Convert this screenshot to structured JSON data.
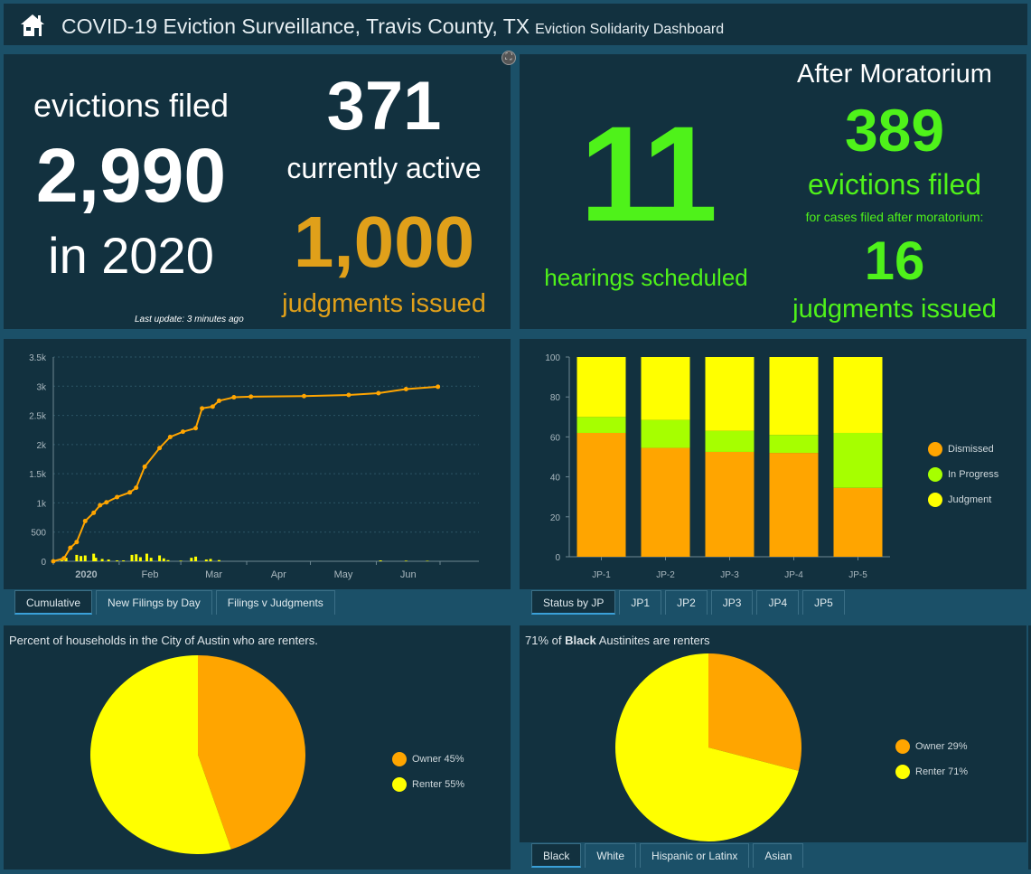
{
  "header": {
    "title": "COVID-19 Eviction Surveillance, Travis County, TX",
    "subtitle": "Eviction Solidarity Dashboard",
    "icon": "home-icon"
  },
  "colors": {
    "orange": "#ffa500",
    "green": "#a6ff00",
    "yellow": "#ffff00",
    "accent_green": "#4ff21a",
    "judgment_gold": "#e0a01a"
  },
  "summary": {
    "label_top": "evictions filed",
    "total": "2,990",
    "label_year": "in 2020",
    "active": "371",
    "active_label": "currently active",
    "judgments": "1,000",
    "judgments_label": "judgments issued",
    "last_update": "Last update: 3 minutes ago"
  },
  "after": {
    "hearings": "11",
    "hearings_label": "hearings scheduled",
    "heading": "After Moratorium",
    "filed": "389",
    "filed_label": "evictions filed",
    "note": "for cases filed after moratorium:",
    "judgments": "16",
    "judgments_label": "judgments issued"
  },
  "line_tabs": [
    "Cumulative",
    "New Filings by Day",
    "Filings v Judgments"
  ],
  "jp_tabs": [
    "Status by JP",
    "JP1",
    "JP2",
    "JP3",
    "JP4",
    "JP5"
  ],
  "race_tabs": [
    "Black",
    "White",
    "Hispanic or Latinx",
    "Asian"
  ],
  "chart_data": [
    {
      "type": "line",
      "ylim": [
        0,
        3500
      ],
      "yticks": [
        "0",
        "500",
        "1k",
        "1.5k",
        "2k",
        "2.5k",
        "3k",
        "3.5k"
      ],
      "xticks": [
        "2020",
        "Feb",
        "Mar",
        "Apr",
        "May",
        "Jun"
      ],
      "xrange": [
        "2020-01-01",
        "2020-07-01"
      ],
      "grid": true,
      "series": [
        {
          "type": "line",
          "color": "#ffa500",
          "points": [
            [
              "2020-01-01",
              0
            ],
            [
              "2020-01-06",
              50
            ],
            [
              "2020-01-09",
              230
            ],
            [
              "2020-01-12",
              330
            ],
            [
              "2020-01-16",
              690
            ],
            [
              "2020-01-20",
              830
            ],
            [
              "2020-01-23",
              960
            ],
            [
              "2020-01-26",
              1010
            ],
            [
              "2020-01-31",
              1100
            ],
            [
              "2020-02-06",
              1180
            ],
            [
              "2020-02-09",
              1260
            ],
            [
              "2020-02-13",
              1620
            ],
            [
              "2020-02-20",
              1940
            ],
            [
              "2020-02-25",
              2130
            ],
            [
              "2020-03-02",
              2220
            ],
            [
              "2020-03-08",
              2280
            ],
            [
              "2020-03-11",
              2620
            ],
            [
              "2020-03-16",
              2650
            ],
            [
              "2020-03-19",
              2750
            ],
            [
              "2020-03-26",
              2810
            ],
            [
              "2020-04-03",
              2820
            ],
            [
              "2020-04-28",
              2830
            ],
            [
              "2020-05-19",
              2850
            ],
            [
              "2020-06-02",
              2880
            ],
            [
              "2020-06-15",
              2950
            ],
            [
              "2020-06-30",
              2990
            ]
          ]
        },
        {
          "type": "bar",
          "color": "#ffff00",
          "points": [
            [
              "2020-01-05",
              20
            ],
            [
              "2020-01-07",
              60
            ],
            [
              "2020-01-12",
              110
            ],
            [
              "2020-01-14",
              90
            ],
            [
              "2020-01-16",
              100
            ],
            [
              "2020-01-20",
              130
            ],
            [
              "2020-01-21",
              60
            ],
            [
              "2020-01-24",
              40
            ],
            [
              "2020-01-27",
              30
            ],
            [
              "2020-01-31",
              15
            ],
            [
              "2020-02-03",
              15
            ],
            [
              "2020-02-07",
              110
            ],
            [
              "2020-02-09",
              120
            ],
            [
              "2020-02-11",
              70
            ],
            [
              "2020-02-14",
              130
            ],
            [
              "2020-02-16",
              60
            ],
            [
              "2020-02-20",
              100
            ],
            [
              "2020-02-22",
              50
            ],
            [
              "2020-02-24",
              20
            ],
            [
              "2020-03-01",
              10
            ],
            [
              "2020-03-06",
              60
            ],
            [
              "2020-03-08",
              80
            ],
            [
              "2020-03-13",
              30
            ],
            [
              "2020-03-15",
              40
            ],
            [
              "2020-03-19",
              20
            ],
            [
              "2020-06-03",
              15
            ],
            [
              "2020-06-15",
              10
            ],
            [
              "2020-06-25",
              8
            ]
          ]
        }
      ]
    },
    {
      "type": "bar",
      "stacked": true,
      "ylim": [
        0,
        100
      ],
      "yticks": [
        "0",
        "20",
        "40",
        "60",
        "80",
        "100"
      ],
      "categories": [
        "JP-1",
        "JP-2",
        "JP-3",
        "JP-4",
        "JP-5"
      ],
      "legend_position": "right",
      "series": [
        {
          "name": "Dismissed",
          "color": "#ffa500",
          "values": [
            62,
            54.5,
            52.5,
            52,
            34.5
          ]
        },
        {
          "name": "In Progress",
          "color": "#a6ff00",
          "values": [
            8,
            14,
            10.5,
            9,
            27.5
          ]
        },
        {
          "name": "Judgment",
          "color": "#ffff00",
          "values": [
            30,
            31.5,
            37,
            39,
            38
          ]
        }
      ]
    },
    {
      "type": "pie",
      "title": "Percent of households in the City of Austin who are renters.",
      "slices": [
        {
          "label": "Owner",
          "value": 45,
          "display": "Owner  45%",
          "color": "#ffa500"
        },
        {
          "label": "Renter",
          "value": 55,
          "display": "Renter  55%",
          "color": "#ffff00"
        }
      ]
    },
    {
      "type": "pie",
      "title_pre": "71% of ",
      "title_bold": "Black",
      "title_post": " Austinites are renters",
      "slices": [
        {
          "label": "Owner",
          "value": 29,
          "display": "Owner  29%",
          "color": "#ffa500"
        },
        {
          "label": "Renter",
          "value": 71,
          "display": "Renter  71%",
          "color": "#ffff00"
        }
      ]
    }
  ]
}
